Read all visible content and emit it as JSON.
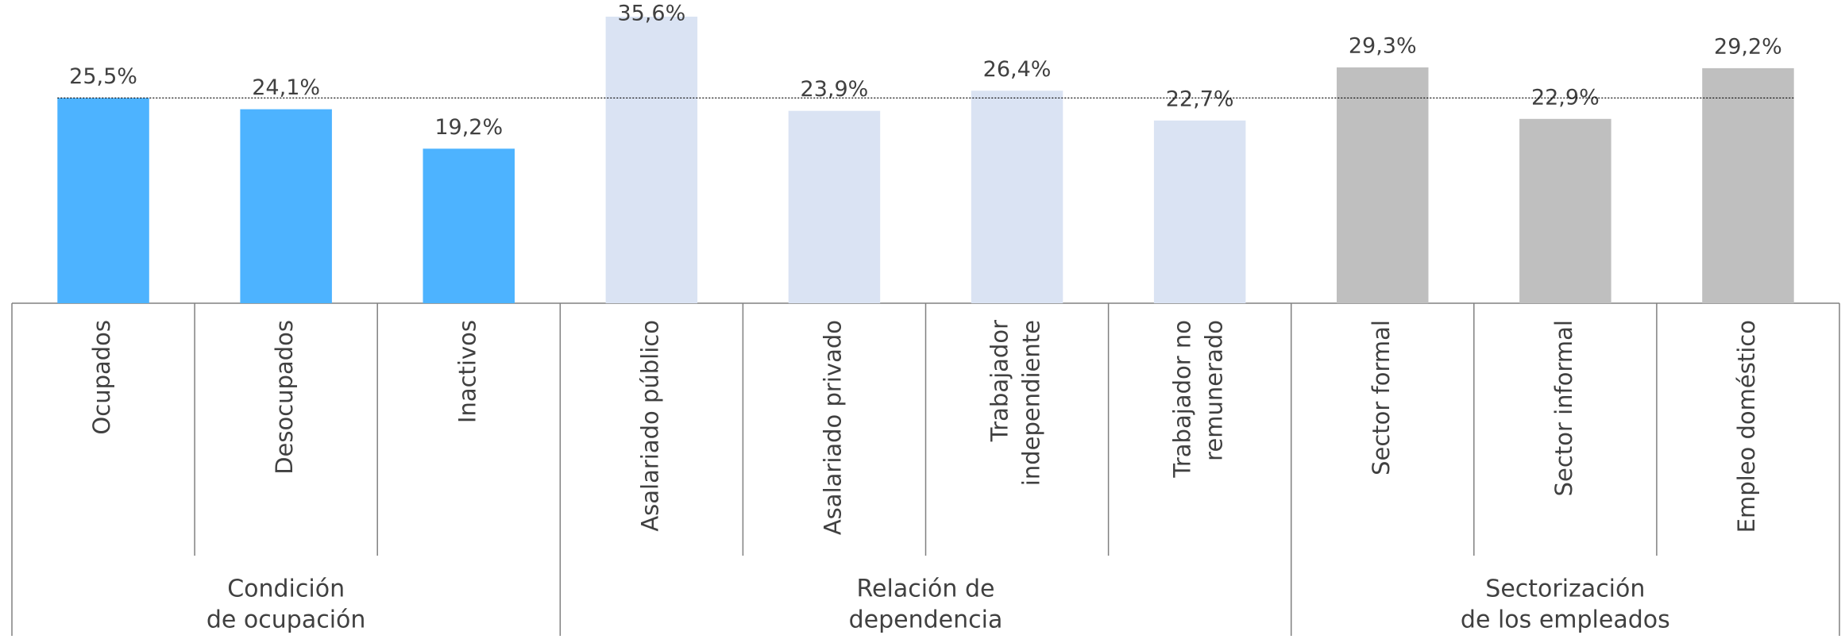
{
  "chart_data": {
    "type": "bar",
    "reference": 25.5,
    "groups": [
      {
        "name": [
          "Condición",
          "de ocupación"
        ],
        "color": "#4db3ff",
        "categories": [
          [
            "Ocupados"
          ],
          [
            "Desocupados"
          ],
          [
            "Inactivos"
          ]
        ],
        "values": [
          25.5,
          24.1,
          19.2
        ],
        "value_labels": [
          "25,5%",
          "24,1%",
          "19,2%"
        ]
      },
      {
        "name": [
          "Relación de",
          "dependencia"
        ],
        "color": "#dae3f3",
        "categories": [
          [
            "Asalariado público"
          ],
          [
            "Asalariado privado"
          ],
          [
            "Trabajador",
            "independiente"
          ],
          [
            "Trabajador no",
            "remunerado"
          ]
        ],
        "values": [
          35.6,
          23.9,
          26.4,
          22.7
        ],
        "value_labels": [
          "35,6%",
          "23,9%",
          "26,4%",
          "22,7%"
        ]
      },
      {
        "name": [
          "Sectorización",
          "de los empleados"
        ],
        "color": "#bfbfbf",
        "categories": [
          [
            "Sector formal"
          ],
          [
            "Sector informal"
          ],
          [
            "Empleo doméstico"
          ]
        ],
        "values": [
          29.3,
          22.9,
          29.2
        ],
        "value_labels": [
          "29,3%",
          "22,9%",
          "29,2%"
        ]
      }
    ]
  }
}
